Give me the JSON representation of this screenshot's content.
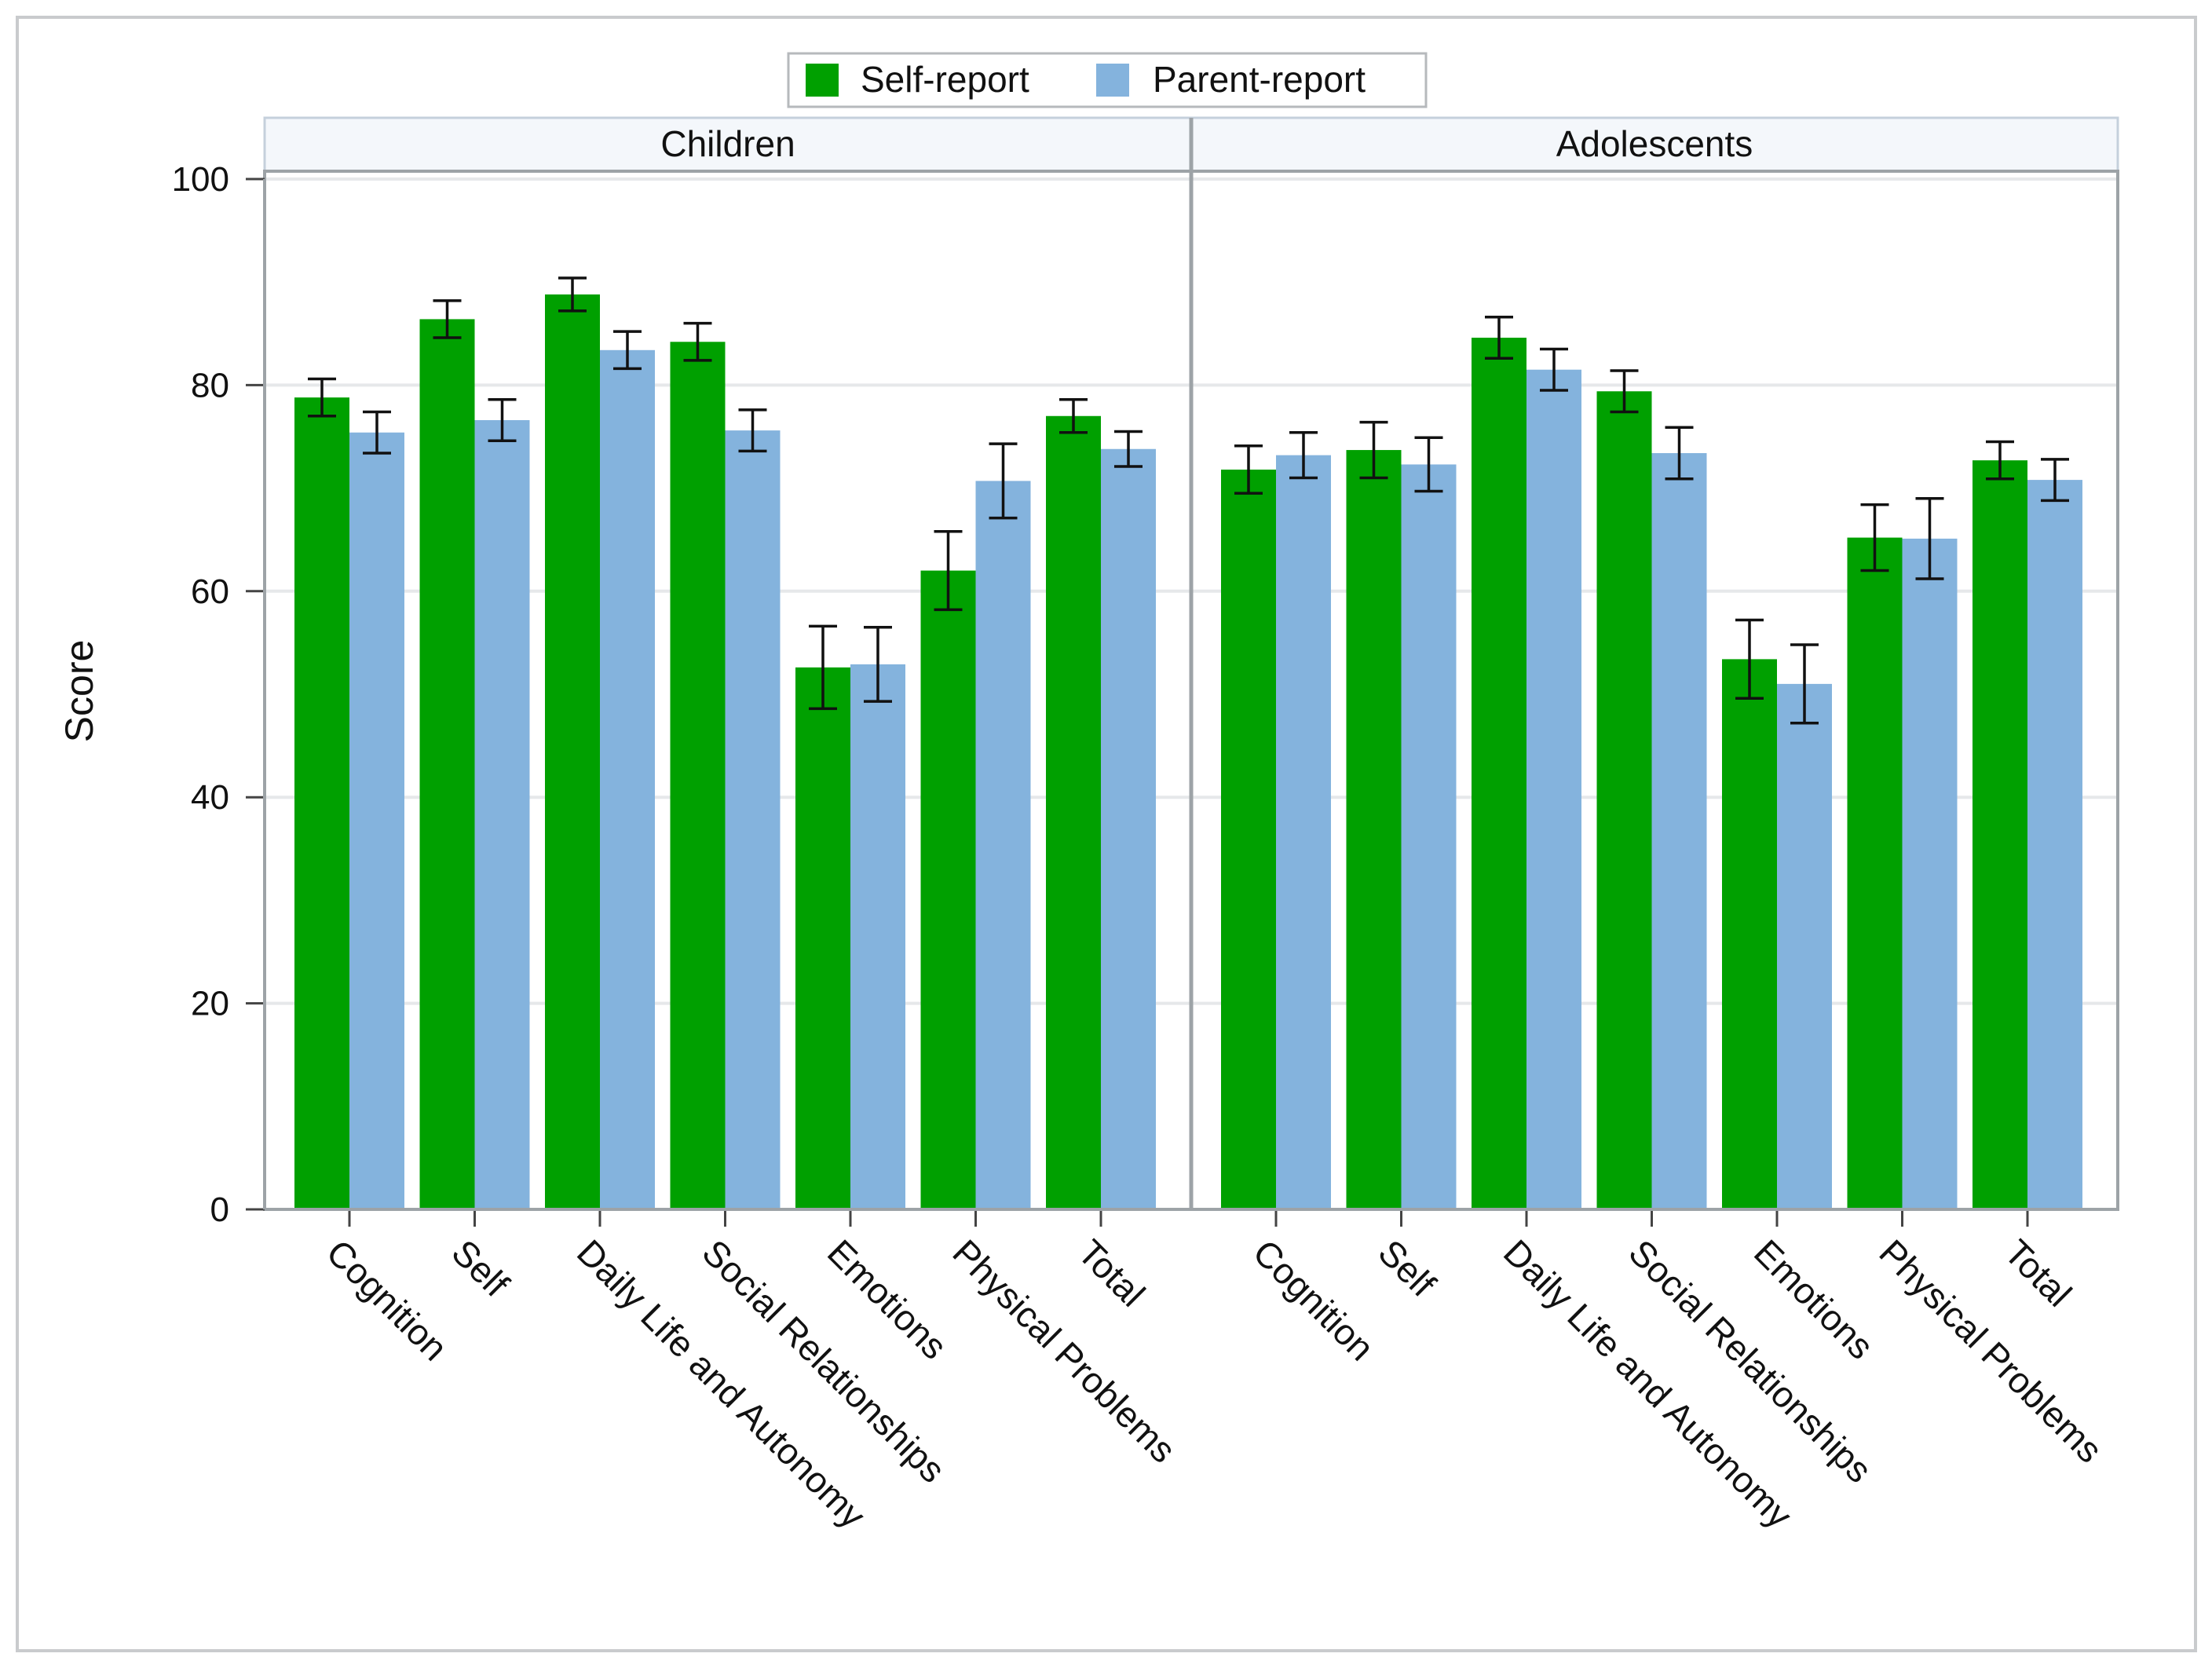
{
  "chart_data": {
    "type": "bar",
    "ylabel": "Score",
    "xlabel": "",
    "ylim": [
      0,
      100
    ],
    "yticks": [
      0,
      20,
      40,
      60,
      80,
      100
    ],
    "grid": true,
    "legend_position": "top-center",
    "categories": [
      "Cognition",
      "Self",
      "Daily Life and Autonomy",
      "Social Relationships",
      "Emotions",
      "Physical Problems",
      "Total"
    ],
    "colors": {
      "self": "#00a000",
      "parent": "#84b3dd"
    },
    "legend": [
      "Self-report",
      "Parent-report"
    ],
    "panels": [
      {
        "name": "Children",
        "series": [
          {
            "name": "Self-report",
            "values": [
              78.8,
              86.4,
              88.8,
              84.2,
              52.6,
              62.0,
              77.0
            ],
            "error": [
              1.8,
              1.8,
              1.6,
              1.8,
              4.0,
              3.8,
              1.6
            ]
          },
          {
            "name": "Parent-report",
            "values": [
              75.4,
              76.6,
              83.4,
              75.6,
              52.9,
              70.7,
              73.8
            ],
            "error": [
              2.0,
              2.0,
              1.8,
              2.0,
              3.6,
              3.6,
              1.7
            ]
          }
        ]
      },
      {
        "name": "Adolescents",
        "series": [
          {
            "name": "Self-report",
            "values": [
              71.8,
              73.7,
              84.6,
              79.4,
              53.4,
              65.2,
              72.7
            ],
            "error": [
              2.3,
              2.7,
              2.0,
              2.0,
              3.8,
              3.2,
              1.8
            ]
          },
          {
            "name": "Parent-report",
            "values": [
              73.2,
              72.3,
              81.5,
              73.4,
              51.0,
              65.1,
              70.8
            ],
            "error": [
              2.2,
              2.6,
              2.0,
              2.5,
              3.8,
              3.9,
              2.0
            ]
          }
        ]
      }
    ]
  }
}
